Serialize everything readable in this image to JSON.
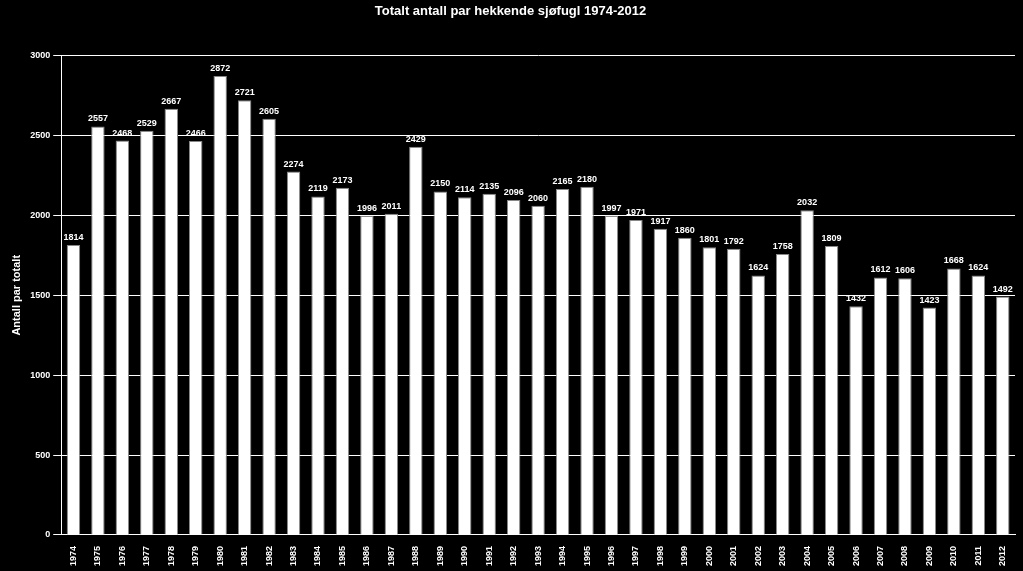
{
  "chart_data": {
    "type": "bar",
    "title": "Totalt antall par hekkende sjøfugl 1974-2012",
    "y_label": "Antall par totalt",
    "categories": [
      "1974",
      "1975",
      "1976",
      "1977",
      "1978",
      "1979",
      "1980",
      "1981",
      "1982",
      "1983",
      "1984",
      "1985",
      "1986",
      "1987",
      "1988",
      "1989",
      "1990",
      "1991",
      "1992",
      "1993",
      "1994",
      "1995",
      "1996",
      "1997",
      "1998",
      "1999",
      "2000",
      "2001",
      "2002",
      "2003",
      "2004",
      "2005",
      "2006",
      "2007",
      "2008",
      "2009",
      "2010",
      "2011",
      "2012"
    ],
    "values": [
      1814,
      2557,
      2468,
      2529,
      2667,
      2466,
      2872,
      2721,
      2605,
      2274,
      2119,
      2173,
      1996,
      2011,
      2429,
      2150,
      2114,
      2135,
      2096,
      2060,
      2165,
      2180,
      1997,
      1971,
      1917,
      1860,
      1801,
      1792,
      1624,
      1758,
      2032,
      1809,
      1432,
      1612,
      1606,
      1423,
      1668,
      1624,
      1492
    ],
    "color": "#ffffff",
    "ylim": [
      0,
      3000
    ],
    "yticks": [
      0,
      500,
      1000,
      1500,
      2000,
      2500,
      3000
    ],
    "grid": true,
    "data_labels": true
  }
}
